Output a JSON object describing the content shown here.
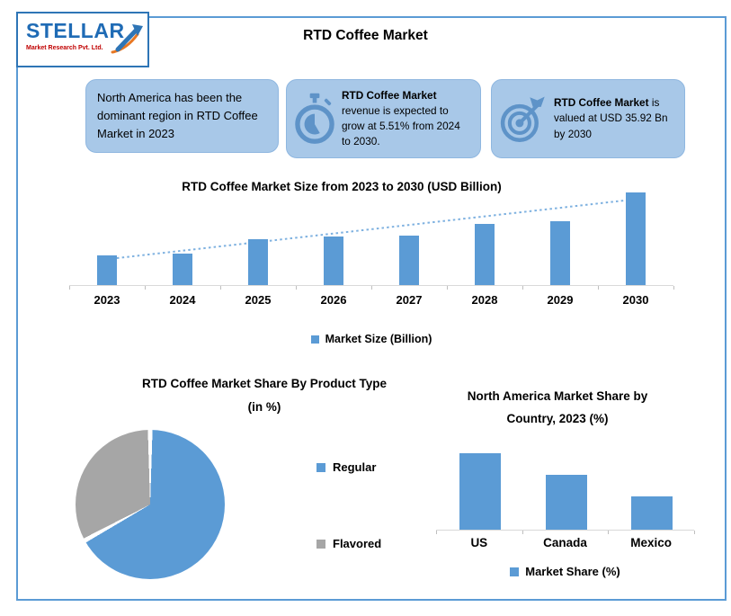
{
  "page": {
    "main_title": "RTD Coffee Market"
  },
  "logo": {
    "brand": "STELLAR",
    "tagline": "Market Research Pvt. Ltd."
  },
  "info_cards": [
    {
      "icon": null,
      "bold_text": "",
      "text": "North America has been the dominant region in RTD Coffee Market in 2023"
    },
    {
      "icon": "stopwatch-icon",
      "bold_text": "RTD Coffee Market",
      "text": " revenue is expected to grow at 5.51% from 2024 to 2030."
    },
    {
      "icon": "target-icon",
      "bold_text": "RTD Coffee Market",
      "text": " is valued at USD 35.92 Bn by 2030"
    }
  ],
  "colors": {
    "accent_blue": "#5B9BD5",
    "card_fill": "#A8C8E8",
    "card_border": "#8FB7E0",
    "icon_blue": "#5E93C8",
    "gray_slice": "#A6A6A6",
    "frame_border": "#5B9BD5",
    "logo_blue": "#1F6BB5",
    "logo_red": "#C00000",
    "trendline_blue": "#7EB1E0",
    "axis_gray": "#D9D9D9"
  },
  "chart_data": [
    {
      "id": "market_size",
      "type": "bar",
      "title": "RTD Coffee Market  Size from 2023 to 2030 (USD Billion)",
      "categories": [
        "2023",
        "2024",
        "2025",
        "2026",
        "2027",
        "2028",
        "2029",
        "2030"
      ],
      "values": [
        11.5,
        12.2,
        17.8,
        18.8,
        19.2,
        23.7,
        24.8,
        35.92
      ],
      "ylim": [
        0,
        35.92
      ],
      "xlabel": "",
      "ylabel": "",
      "grid": false,
      "bar_color": "#5B9BD5",
      "legend": [
        "Market Size (Billion)"
      ],
      "legend_position": "bottom",
      "trendline": {
        "style": "dotted",
        "color": "#7EB1E0"
      },
      "note": "Y-axis unlabeled in source; values estimated from bar heights scaled to the stated 2030 value of USD 35.92 Bn."
    },
    {
      "id": "product_type_share",
      "type": "pie",
      "title": "RTD Coffee Market Share By Product Type",
      "subtitle": "(in %)",
      "labels": [
        "Regular",
        "Flavored"
      ],
      "values": [
        67,
        33
      ],
      "colors": [
        "#5B9BD5",
        "#A6A6A6"
      ],
      "legend_position": "right",
      "note": "Slice sizes estimated from drawing; no data labels shown."
    },
    {
      "id": "country_share",
      "type": "bar",
      "title": "North America Market Share by",
      "subtitle": "Country, 2023 (%)",
      "categories": [
        "US",
        "Canada",
        "Mexico"
      ],
      "values": [
        46,
        33,
        20
      ],
      "ylim": [
        0,
        50
      ],
      "grid": false,
      "bar_color": "#5B9BD5",
      "legend": [
        "Market Share (%)"
      ],
      "legend_position": "bottom",
      "note": "Y-axis unlabeled in source; values estimated from relative bar heights."
    }
  ]
}
